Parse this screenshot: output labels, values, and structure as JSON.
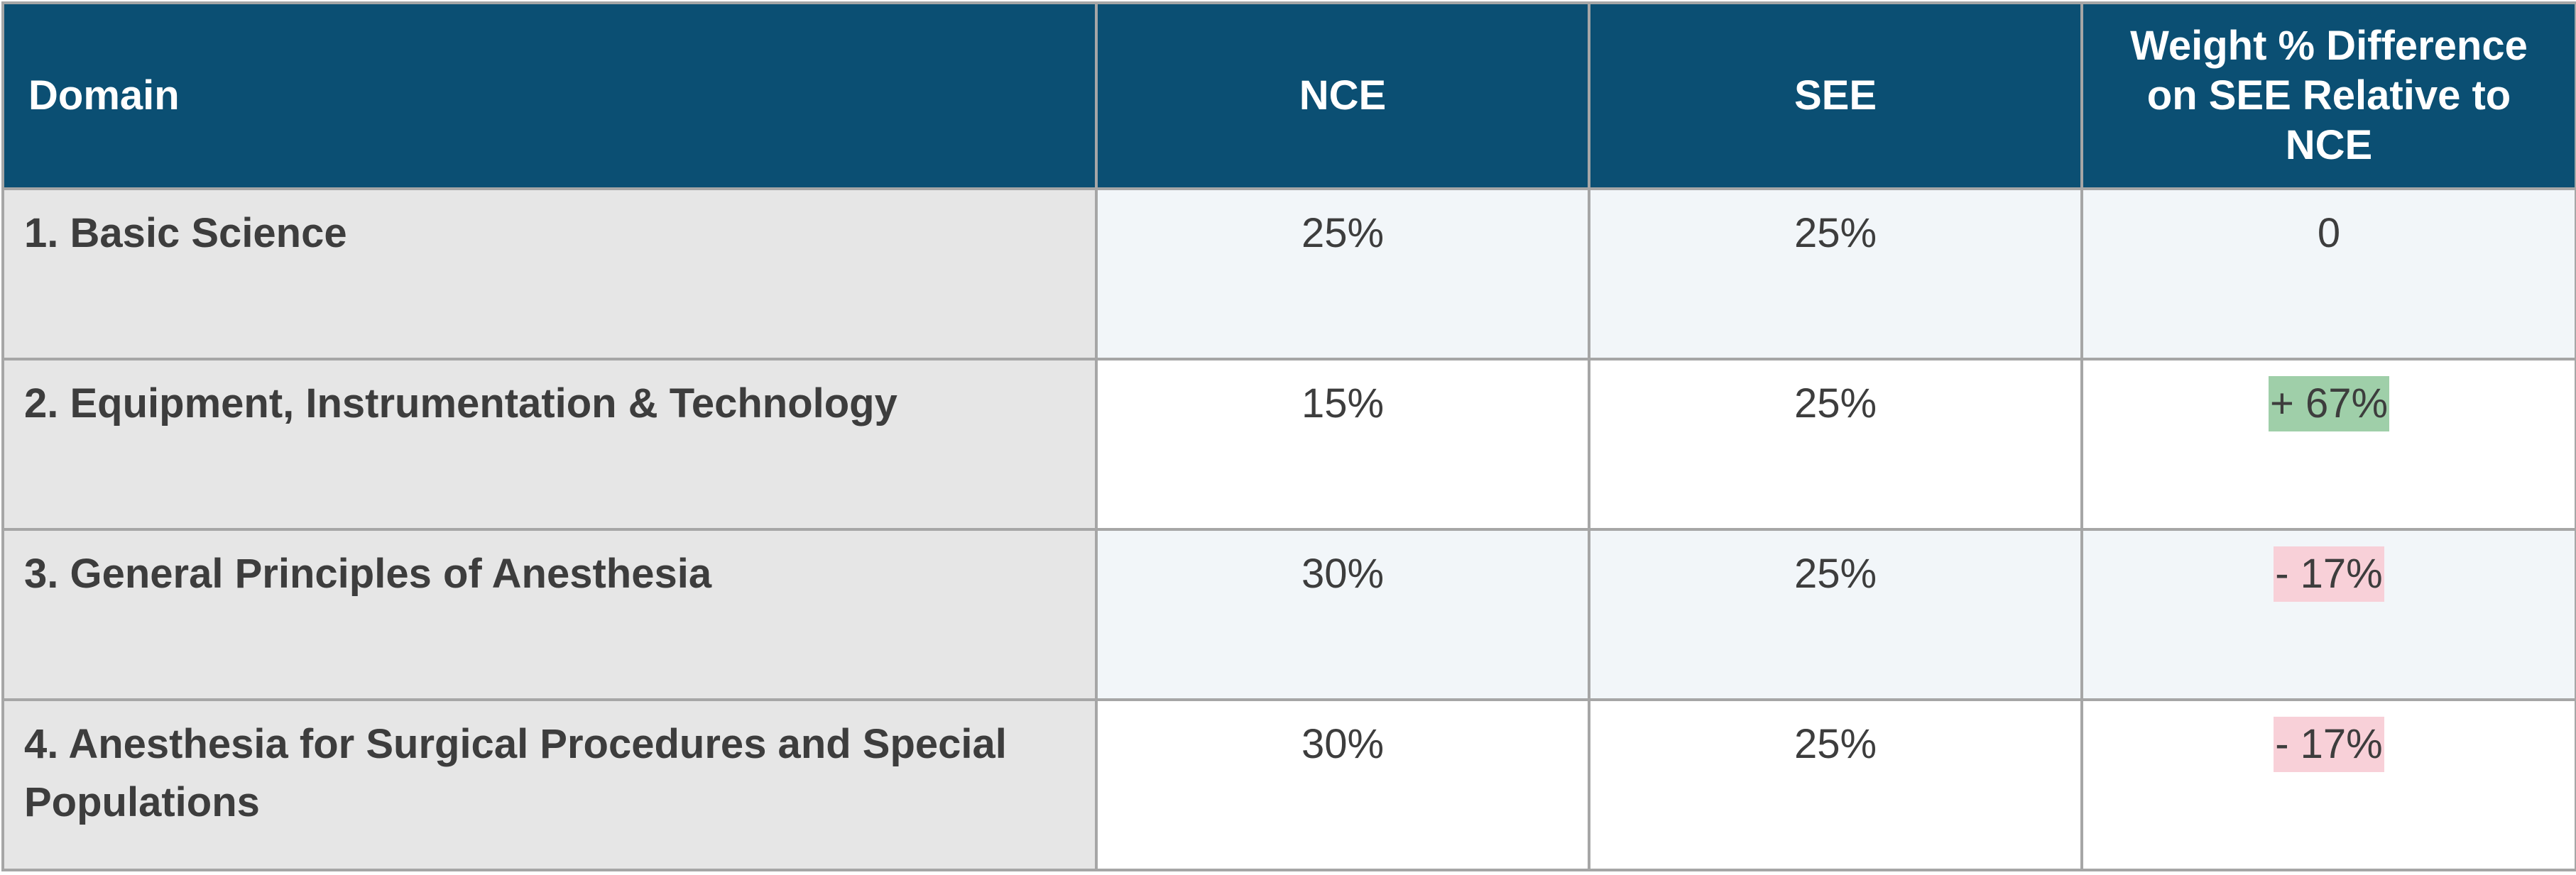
{
  "headers": {
    "domain": "Domain",
    "nce": "NCE",
    "see": "SEE",
    "diff": "Weight % Difference on SEE Relative to NCE"
  },
  "rows": [
    {
      "domain": "1. Basic Science",
      "nce": "25%",
      "see": "25%",
      "diff": "0",
      "diff_highlight": "none"
    },
    {
      "domain": "2. Equipment, Instrumentation & Technology",
      "nce": "15%",
      "see": "25%",
      "diff": "+ 67%",
      "diff_highlight": "green"
    },
    {
      "domain": "3. General Principles of Anesthesia",
      "nce": "30%",
      "see": "25%",
      "diff": "- 17%",
      "diff_highlight": "red"
    },
    {
      "domain": "4. Anesthesia for Surgical Procedures and Special Populations",
      "nce": "30%",
      "see": "25%",
      "diff": "- 17%",
      "diff_highlight": "red"
    }
  ],
  "colors": {
    "header_bg": "#0b4f73",
    "header_text": "#ffffff",
    "domain_cell_bg": "#e6e6e6",
    "shaded_row_bg": "#f2f6f9",
    "positive_highlight": "#9fcfa9",
    "negative_highlight": "#f8d0d8",
    "border": "#a6a6a6"
  }
}
